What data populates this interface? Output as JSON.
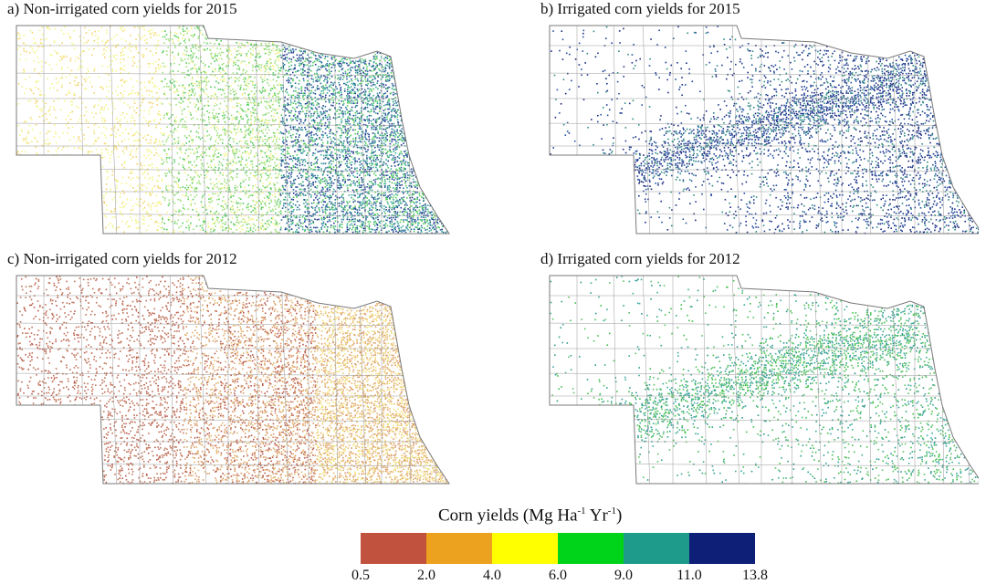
{
  "panels": [
    {
      "id": "a",
      "title": "a) Non-irrigated corn yields for 2015",
      "palette": [
        "#f4f48a",
        "#f2d36a",
        "#9fe07a",
        "#4fc95a",
        "#3aa89a",
        "#2a6e9a",
        "#1f3a8f"
      ]
    },
    {
      "id": "b",
      "title": "b) Irrigated corn yields for 2015",
      "palette": [
        "#16277e",
        "#1f3a8f",
        "#24509e",
        "#2f8a86"
      ]
    },
    {
      "id": "c",
      "title": "c) Non-irrigated corn yields for 2012",
      "palette": [
        "#c0735a",
        "#b85a48",
        "#d99a6a",
        "#e3b36e",
        "#e9c26a",
        "#f3e27a"
      ]
    },
    {
      "id": "d",
      "title": "d) Irrigated corn yields for 2012",
      "palette": [
        "#2f9a8e",
        "#3aa89a",
        "#5cc06a",
        "#3fbf4a"
      ]
    }
  ],
  "legend": {
    "title_main": "Corn yields (Mg Ha",
    "title_sup1": "-1",
    "title_mid": " Yr",
    "title_sup2": "-1",
    "title_end": ")",
    "classes": [
      {
        "from": 0.5,
        "to": 2.0,
        "color": "#c0523e"
      },
      {
        "from": 2.0,
        "to": 4.0,
        "color": "#eda21f"
      },
      {
        "from": 4.0,
        "to": 6.0,
        "color": "#ffff00"
      },
      {
        "from": 6.0,
        "to": 9.0,
        "color": "#00d41a"
      },
      {
        "from": 9.0,
        "to": 11.0,
        "color": "#1f9b8b"
      },
      {
        "from": 11.0,
        "to": 13.8,
        "color": "#0e1f78"
      }
    ],
    "ticks": [
      "0.5",
      "2.0",
      "4.0",
      "6.0",
      "9.0",
      "11.0",
      "13.8"
    ]
  }
}
